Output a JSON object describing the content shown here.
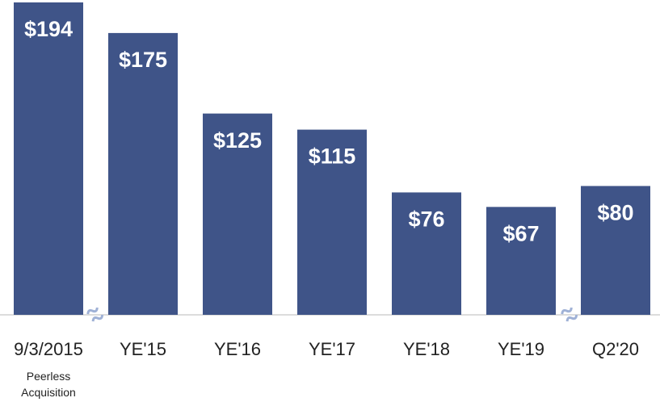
{
  "chart_data": {
    "type": "bar",
    "categories": [
      "9/3/2015",
      "YE'15",
      "YE'16",
      "YE'17",
      "YE'18",
      "YE'19",
      "Q2'20"
    ],
    "values": [
      194,
      175,
      125,
      115,
      76,
      67,
      80
    ],
    "value_labels": [
      "$194",
      "$175",
      "$125",
      "$115",
      "$76",
      "$67",
      "$80"
    ],
    "color": "#3f5488",
    "annotation": "Peerless Acquisition"
  }
}
